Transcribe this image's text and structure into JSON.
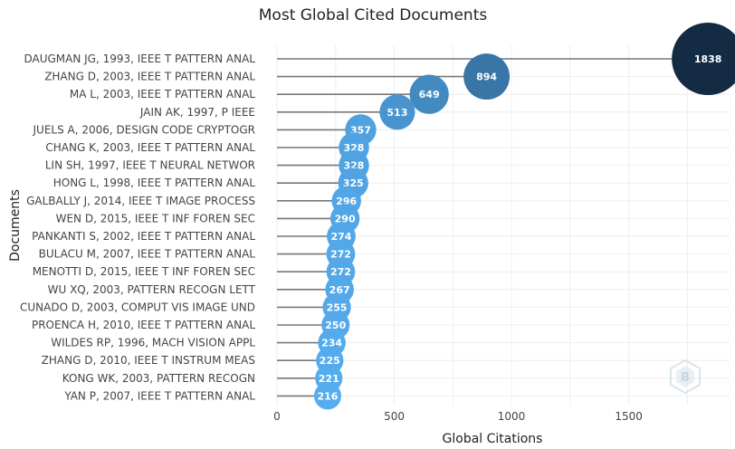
{
  "chart_data": {
    "type": "scatter",
    "title": "Most Global Cited Documents",
    "xlabel": "Global Citations",
    "ylabel": "Documents",
    "xlim": [
      0,
      1930
    ],
    "xticks": [
      0,
      500,
      1000,
      1500
    ],
    "grid": true,
    "documents": [
      {
        "label": "DAUGMAN JG, 1993, IEEE T PATTERN ANAL",
        "value": 1838
      },
      {
        "label": "ZHANG D, 2003, IEEE T PATTERN ANAL",
        "value": 894
      },
      {
        "label": "MA L, 2003, IEEE T PATTERN ANAL",
        "value": 649
      },
      {
        "label": "JAIN AK, 1997, P IEEE",
        "value": 513
      },
      {
        "label": "JUELS A, 2006, DESIGN CODE CRYPTOGR",
        "value": 357
      },
      {
        "label": "CHANG K, 2003, IEEE T PATTERN ANAL",
        "value": 328
      },
      {
        "label": "LIN SH, 1997, IEEE T NEURAL NETWOR",
        "value": 328
      },
      {
        "label": "HONG L, 1998, IEEE T PATTERN ANAL",
        "value": 325
      },
      {
        "label": "GALBALLY J, 2014, IEEE T IMAGE PROCESS",
        "value": 296
      },
      {
        "label": "WEN D, 2015, IEEE T INF FOREN SEC",
        "value": 290
      },
      {
        "label": "PANKANTI S, 2002, IEEE T PATTERN ANAL",
        "value": 274
      },
      {
        "label": "BULACU M, 2007, IEEE T PATTERN ANAL",
        "value": 272
      },
      {
        "label": "MENOTTI D, 2015, IEEE T INF FOREN SEC",
        "value": 272
      },
      {
        "label": "WU XQ, 2003, PATTERN RECOGN LETT",
        "value": 267
      },
      {
        "label": "CUNADO D, 2003, COMPUT VIS IMAGE UND",
        "value": 255
      },
      {
        "label": "PROENCA H, 2010, IEEE T PATTERN ANAL",
        "value": 250
      },
      {
        "label": "WILDES RP, 1996, MACH VISION APPL",
        "value": 234
      },
      {
        "label": "ZHANG D, 2010, IEEE T INSTRUM MEAS",
        "value": 225
      },
      {
        "label": "KONG WK, 2003, PATTERN RECOGN",
        "value": 221
      },
      {
        "label": "YAN P, 2007, IEEE T PATTERN ANAL",
        "value": 216
      }
    ],
    "colors": {
      "stem": "#777777",
      "bubble_low": "#55acee",
      "bubble_high": "#132b43",
      "label": "#444444"
    }
  },
  "watermark": {
    "icon": "bibliometrix-logo-icon"
  }
}
